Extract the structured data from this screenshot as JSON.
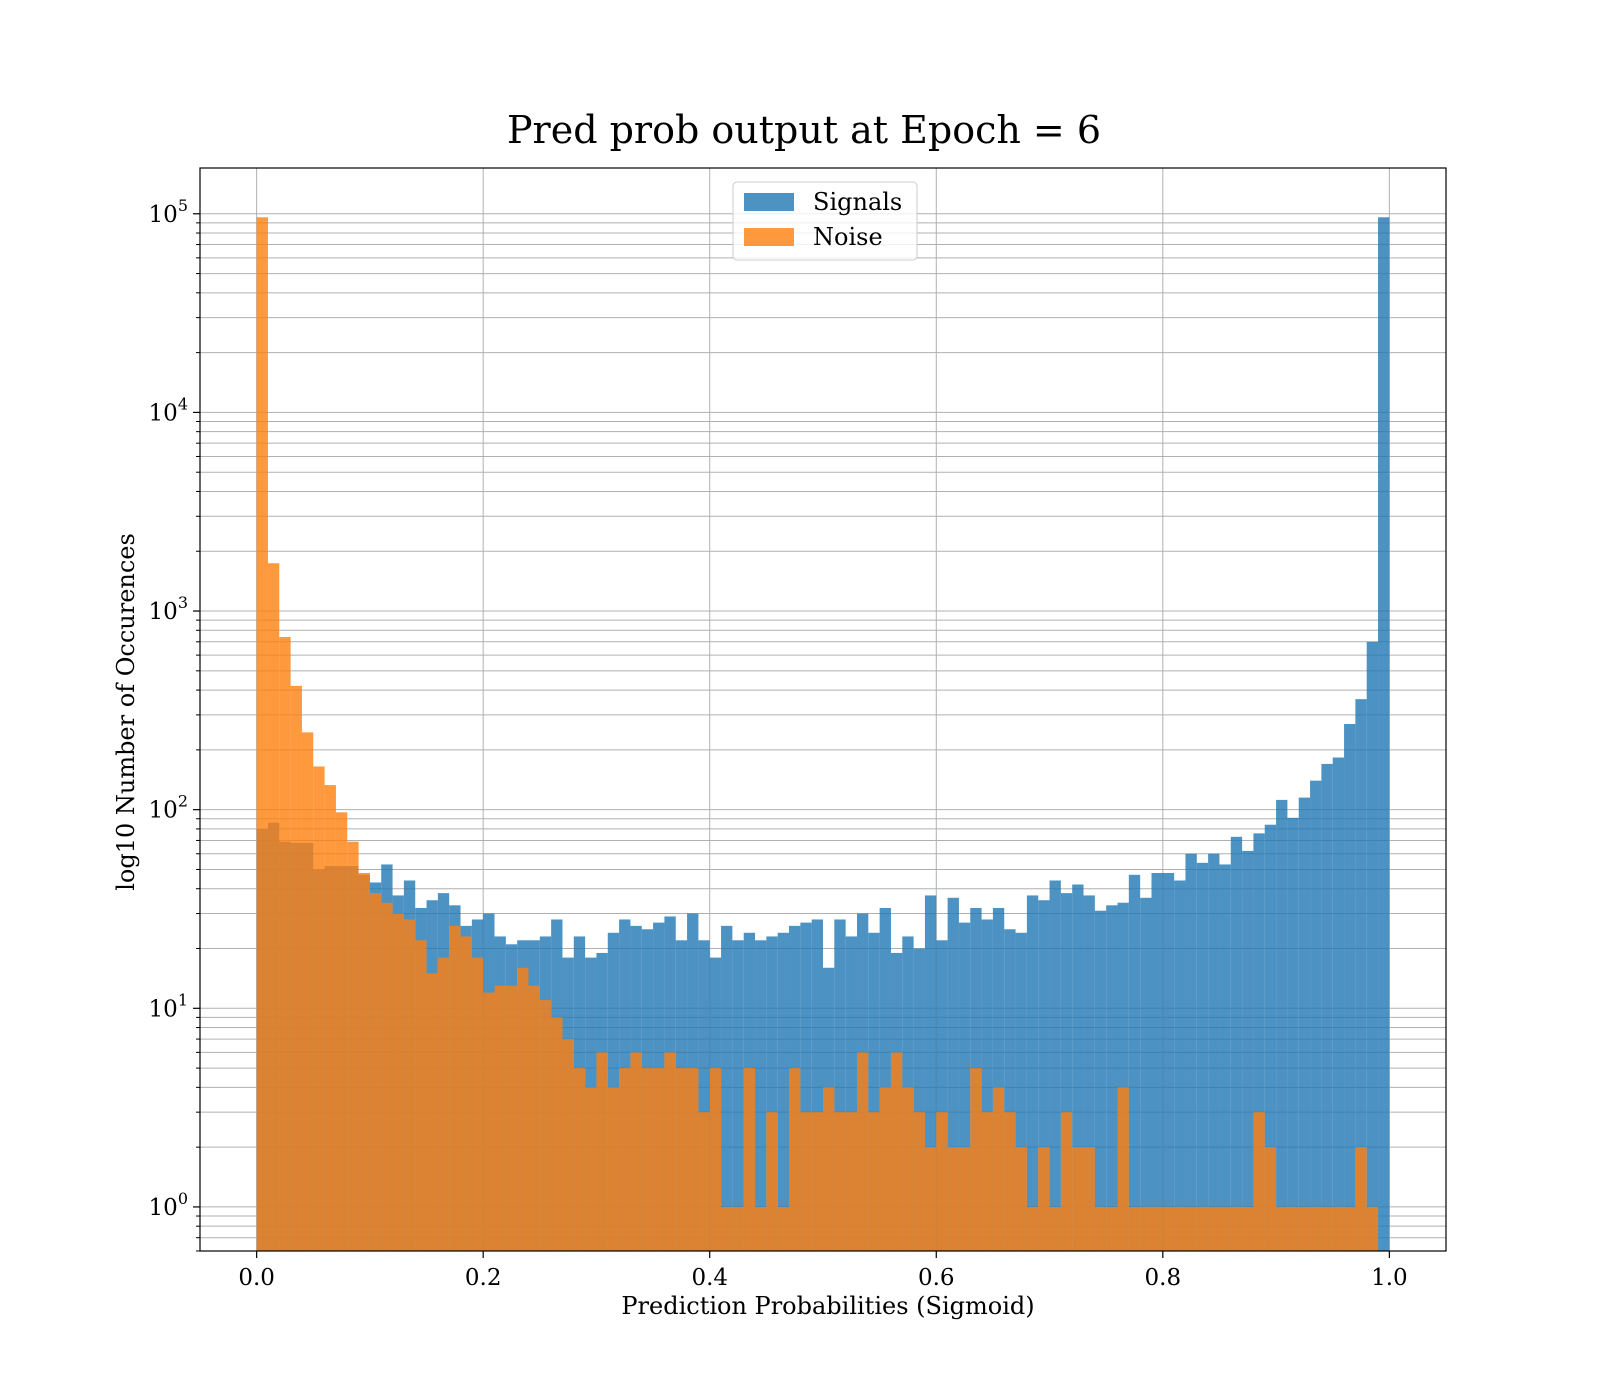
{
  "chart_data": {
    "type": "histogram",
    "title": "Pred prob output at Epoch = 6",
    "xlabel": "Prediction Probabilities (Sigmoid)",
    "ylabel": "log10 Number of Occurences",
    "x_scale": "linear",
    "y_scale": "log",
    "xlim": [
      -0.05,
      1.05
    ],
    "ylim": [
      0.6,
      170000
    ],
    "grid": true,
    "legend_position": "upper center",
    "x_ticks": [
      {
        "value": 0.0,
        "label": "0.0"
      },
      {
        "value": 0.2,
        "label": "0.2"
      },
      {
        "value": 0.4,
        "label": "0.4"
      },
      {
        "value": 0.6,
        "label": "0.6"
      },
      {
        "value": 0.8,
        "label": "0.8"
      },
      {
        "value": 1.0,
        "label": "1.0"
      }
    ],
    "y_ticks": [
      {
        "value": 1,
        "base": "10",
        "exp": "0"
      },
      {
        "value": 10,
        "base": "10",
        "exp": "1"
      },
      {
        "value": 100,
        "base": "10",
        "exp": "2"
      },
      {
        "value": 1000,
        "base": "10",
        "exp": "3"
      },
      {
        "value": 10000,
        "base": "10",
        "exp": "4"
      },
      {
        "value": 100000,
        "base": "10",
        "exp": "5"
      }
    ],
    "bins": 100,
    "bin_range": [
      0,
      1
    ],
    "series": [
      {
        "name": "Signals",
        "color": "#1f77b4",
        "opacity": 0.8,
        "values": [
          80,
          86,
          69,
          68,
          68,
          50,
          52,
          52,
          52,
          47,
          43,
          53,
          37,
          44,
          32,
          35,
          38,
          33,
          26,
          28,
          30,
          23,
          21,
          22,
          22,
          23,
          28,
          18,
          23,
          18,
          19,
          24,
          28,
          26,
          25,
          27,
          29,
          22,
          30,
          22,
          18,
          26,
          22,
          24,
          22,
          23,
          24,
          26,
          27,
          28,
          16,
          28,
          23,
          30,
          24,
          32,
          19,
          23,
          20,
          37,
          22,
          36,
          27,
          32,
          28,
          32,
          25,
          24,
          37,
          35,
          44,
          38,
          42,
          37,
          31,
          33,
          34,
          47,
          36,
          48,
          48,
          44,
          60,
          54,
          60,
          53,
          73,
          62,
          76,
          84,
          112,
          91,
          115,
          140,
          170,
          183,
          270,
          360,
          700,
          96000
        ]
      },
      {
        "name": "Noise",
        "color": "#ff7f0e",
        "opacity": 0.8,
        "values": [
          96000,
          1740,
          740,
          420,
          245,
          165,
          133,
          97,
          69,
          48,
          38,
          34,
          30,
          28,
          22,
          15,
          18,
          26,
          23,
          18,
          12,
          13,
          13,
          16,
          13,
          11,
          9,
          7,
          5,
          4,
          6,
          4,
          5,
          6,
          5,
          5,
          6,
          5,
          5,
          3,
          5,
          1,
          1,
          5,
          1,
          3,
          1,
          5,
          3,
          3,
          4,
          3,
          3,
          6,
          3,
          4,
          6,
          4,
          3,
          2,
          3,
          2,
          2,
          5,
          3,
          4,
          3,
          2,
          1,
          2,
          1,
          3,
          2,
          2,
          1,
          1,
          4,
          1,
          1,
          1,
          1,
          1,
          1,
          1,
          1,
          1,
          1,
          1,
          3,
          2,
          1,
          1,
          1,
          1,
          1,
          1,
          1,
          2,
          1,
          0
        ]
      }
    ]
  }
}
